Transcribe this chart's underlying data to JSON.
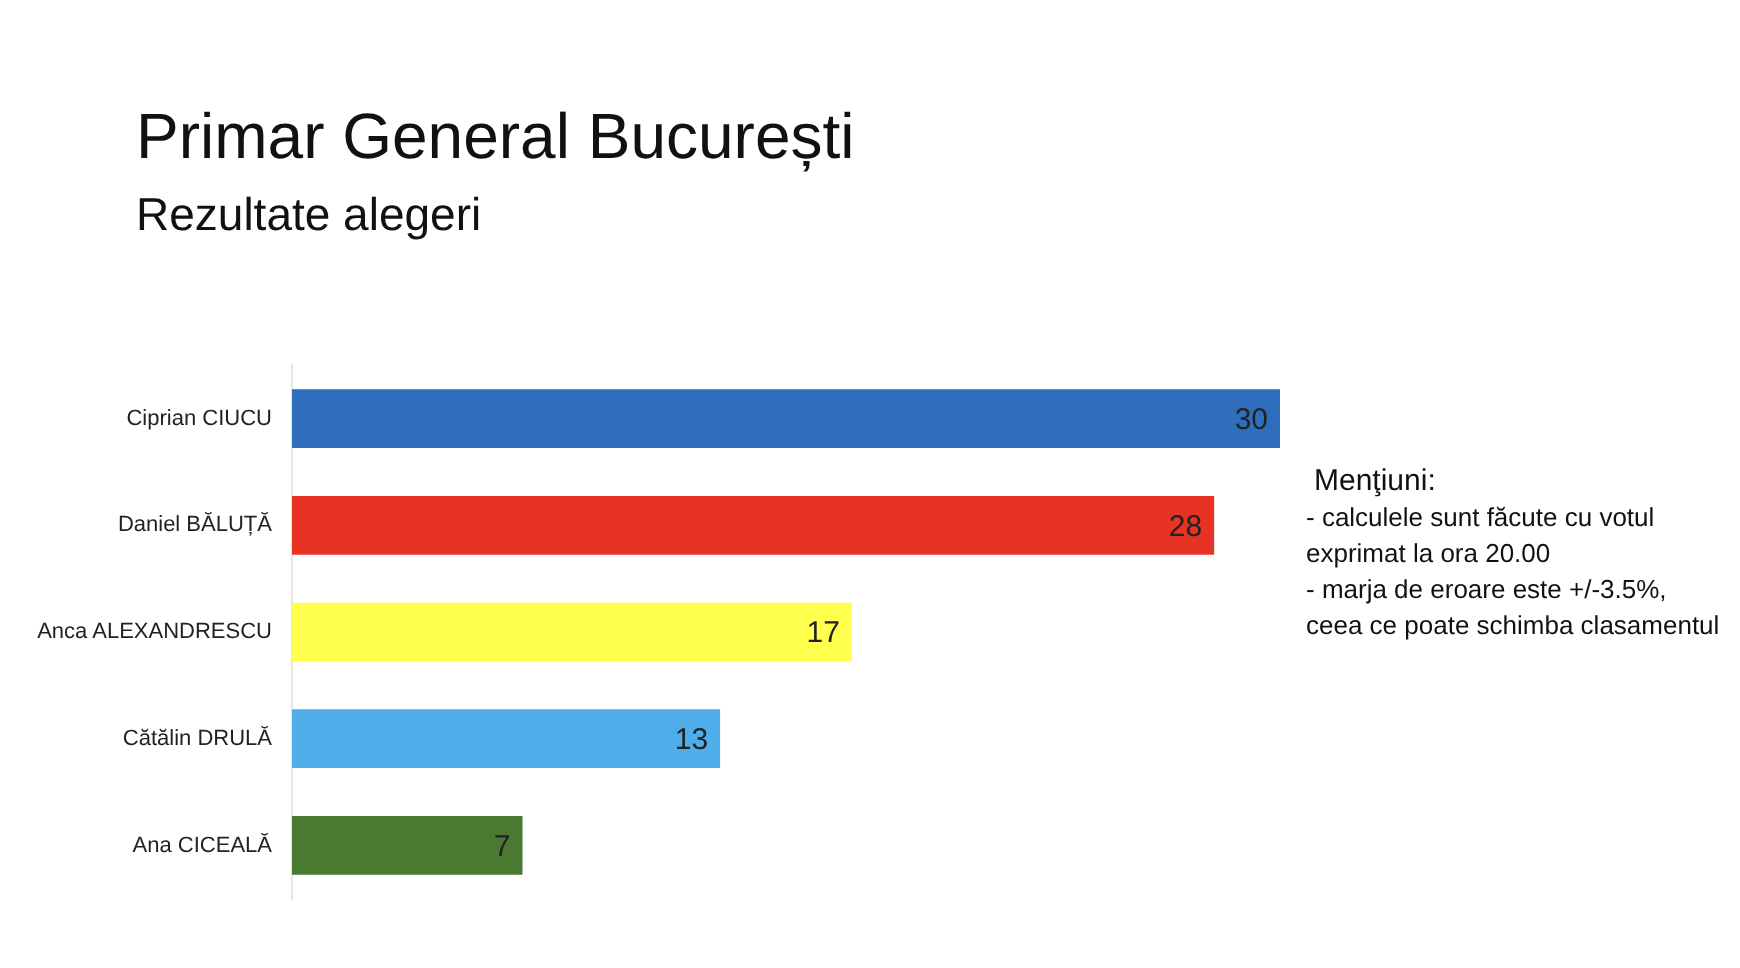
{
  "chart_data": {
    "type": "bar",
    "orientation": "horizontal",
    "title": "Primar General București",
    "subtitle": "Rezultate alegeri",
    "categories": [
      "Ciprian CIUCU",
      "Daniel BĂLUȚĂ",
      "Anca ALEXANDRESCU",
      "Cătălin DRULĂ",
      "Ana CICEALĂ"
    ],
    "values": [
      30,
      28,
      17,
      13,
      7
    ],
    "colors": [
      "#2f6ebd",
      "#e63323",
      "#ffff4d",
      "#4fadea",
      "#4a7a32"
    ],
    "data_labels": true,
    "grid": false,
    "legend": false,
    "tick_labels": "y",
    "annotations": [
      "Menţiuni:",
      "- calculele sunt făcute cu votul exprimat la ora 20.00",
      "- marja de eroare este +/-3.5%, ceea ce poate schimba clasamentul"
    ]
  }
}
